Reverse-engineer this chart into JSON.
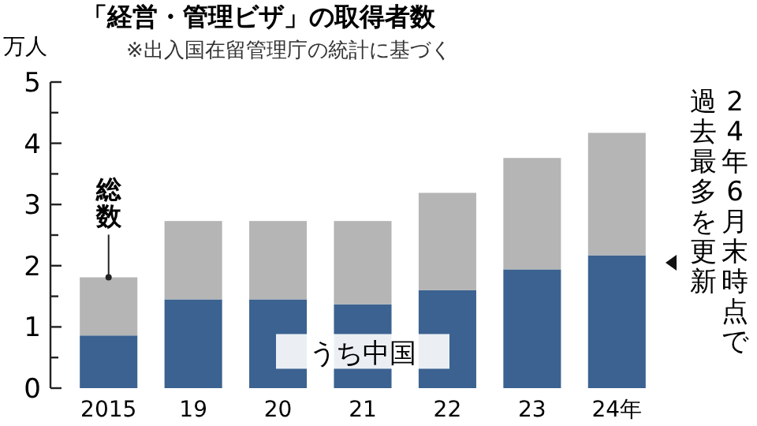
{
  "chart_data": {
    "type": "bar",
    "stacked": true,
    "title": "「経営・管理ビザ」の取得者数",
    "subtitle": "※出入国在留管理庁の統計に基づく",
    "ylabel": "万人",
    "categories": [
      "2015",
      "19",
      "20",
      "21",
      "22",
      "23",
      "24年"
    ],
    "series": [
      {
        "name": "うち中国",
        "color": "#3b6290",
        "values": [
          0.86,
          1.45,
          1.45,
          1.37,
          1.6,
          1.94,
          2.17
        ]
      },
      {
        "name": "総数",
        "color": "#b5b5b5",
        "values": [
          0.95,
          1.28,
          1.28,
          1.36,
          1.59,
          1.82,
          2.0
        ]
      }
    ],
    "ylim": [
      0,
      5
    ],
    "yticks": [
      0,
      {
        "value": 0.5,
        "label": null
      },
      1,
      {
        "value": 1.5,
        "label": null
      },
      2,
      {
        "value": 2.5,
        "label": null
      },
      3,
      {
        "value": 3.5,
        "label": null
      },
      4,
      {
        "value": 4.5,
        "label": null
      },
      5
    ],
    "annotations": [
      "24年6月末時点で",
      "過去最多を更新"
    ],
    "grid": false,
    "legend": false
  }
}
